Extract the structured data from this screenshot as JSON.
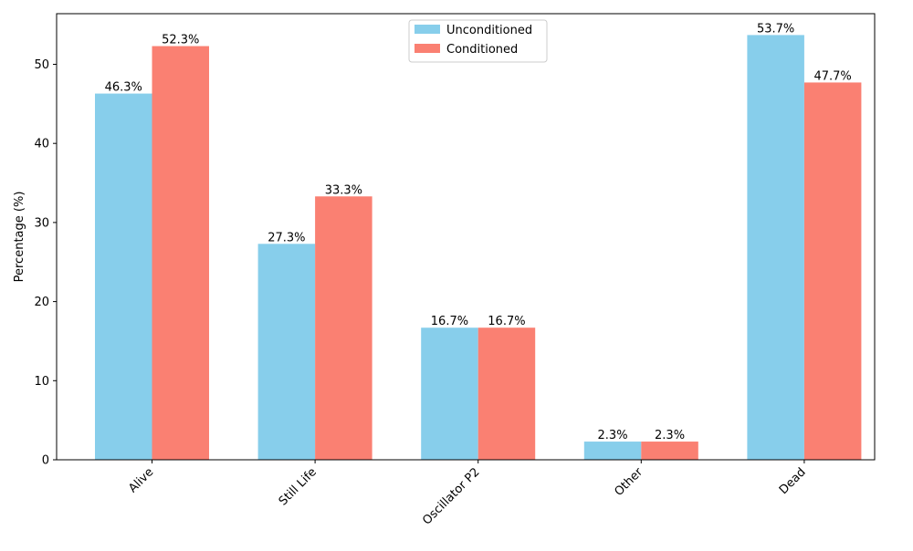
{
  "chart_data": {
    "type": "bar",
    "title": "",
    "xlabel": "",
    "ylabel": "Percentage (%)",
    "ylim": [
      0,
      56.4
    ],
    "yticks": [
      0,
      10,
      20,
      30,
      40,
      50
    ],
    "categories": [
      "Alive",
      "Still Life",
      "Oscillator P2",
      "Other",
      "Dead"
    ],
    "series": [
      {
        "name": "Unconditioned",
        "color": "#87ceeb",
        "values": [
          46.3,
          27.3,
          16.7,
          2.3,
          53.7
        ],
        "labels": [
          "46.3%",
          "27.3%",
          "16.7%",
          "2.3%",
          "53.7%"
        ]
      },
      {
        "name": "Conditioned",
        "color": "#fa8072",
        "values": [
          52.3,
          33.3,
          16.7,
          2.3,
          47.7
        ],
        "labels": [
          "52.3%",
          "33.3%",
          "16.7%",
          "2.3%",
          "47.7%"
        ]
      }
    ],
    "legend_position": "top-center",
    "grid": false
  }
}
